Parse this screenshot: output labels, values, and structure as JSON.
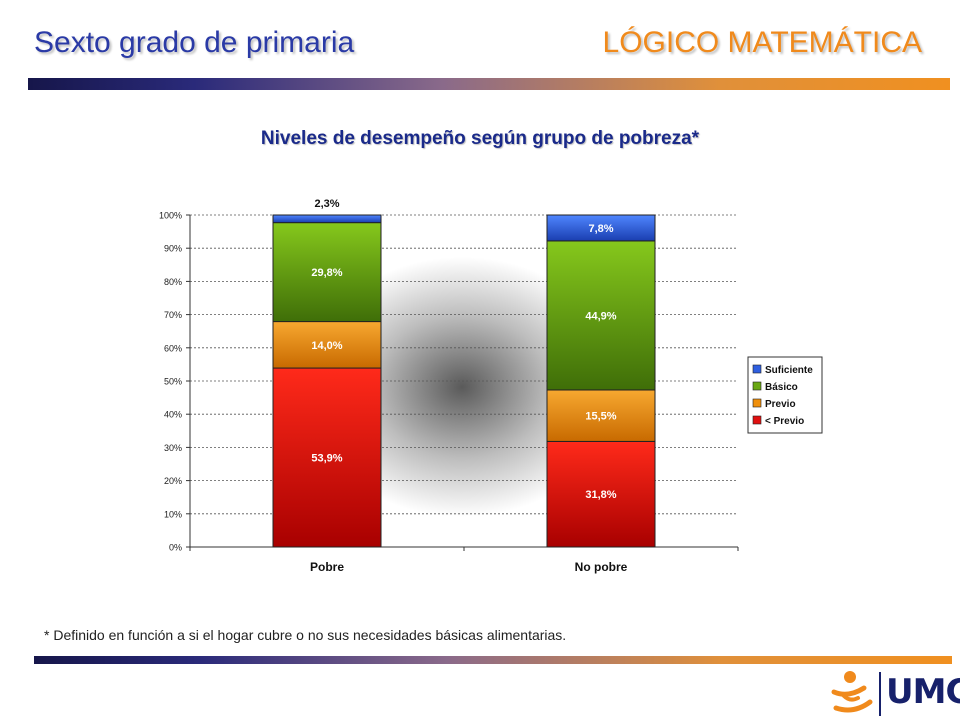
{
  "header": {
    "left_title": "Sexto grado de primaria",
    "right_title": "LÓGICO MATEMÁTICA"
  },
  "footnote": "* Definido en función a si el hogar cubre o no sus necesidades básicas alimentarias.",
  "logo": {
    "text": "UMC"
  },
  "colors": {
    "title_blue": "#2a3aa6",
    "title_orange": "#f08a1c",
    "suficiente": "#2f5fe0",
    "basico": "#6aa814",
    "previo": "#f0900c",
    "menor_previo": "#e01010"
  },
  "chart_data": {
    "type": "bar",
    "stacked": true,
    "title": "Niveles de desempeño según grupo de pobreza*",
    "categories": [
      "Pobre",
      "No pobre"
    ],
    "series": [
      {
        "name": "< Previo",
        "values": [
          53.9,
          31.8
        ],
        "labels": [
          "53,9%",
          "31,8%"
        ],
        "color": "#e01010"
      },
      {
        "name": "Previo",
        "values": [
          14.0,
          15.5
        ],
        "labels": [
          "14,0%",
          "15,5%"
        ],
        "color": "#f0900c"
      },
      {
        "name": "Básico",
        "values": [
          29.8,
          44.9
        ],
        "labels": [
          "29,8%",
          "44,9%"
        ],
        "color": "#6aa814"
      },
      {
        "name": "Suficiente",
        "values": [
          2.3,
          7.8
        ],
        "labels": [
          "2,3%",
          "7,8%"
        ],
        "color": "#2f5fe0"
      }
    ],
    "yticks": [
      "0%",
      "10%",
      "20%",
      "30%",
      "40%",
      "50%",
      "60%",
      "70%",
      "80%",
      "90%",
      "100%"
    ],
    "ylim": [
      0,
      100
    ],
    "grid": true,
    "legend": {
      "position": "right",
      "entries": [
        "Suficiente",
        "Básico",
        "Previo",
        "< Previo"
      ]
    }
  }
}
